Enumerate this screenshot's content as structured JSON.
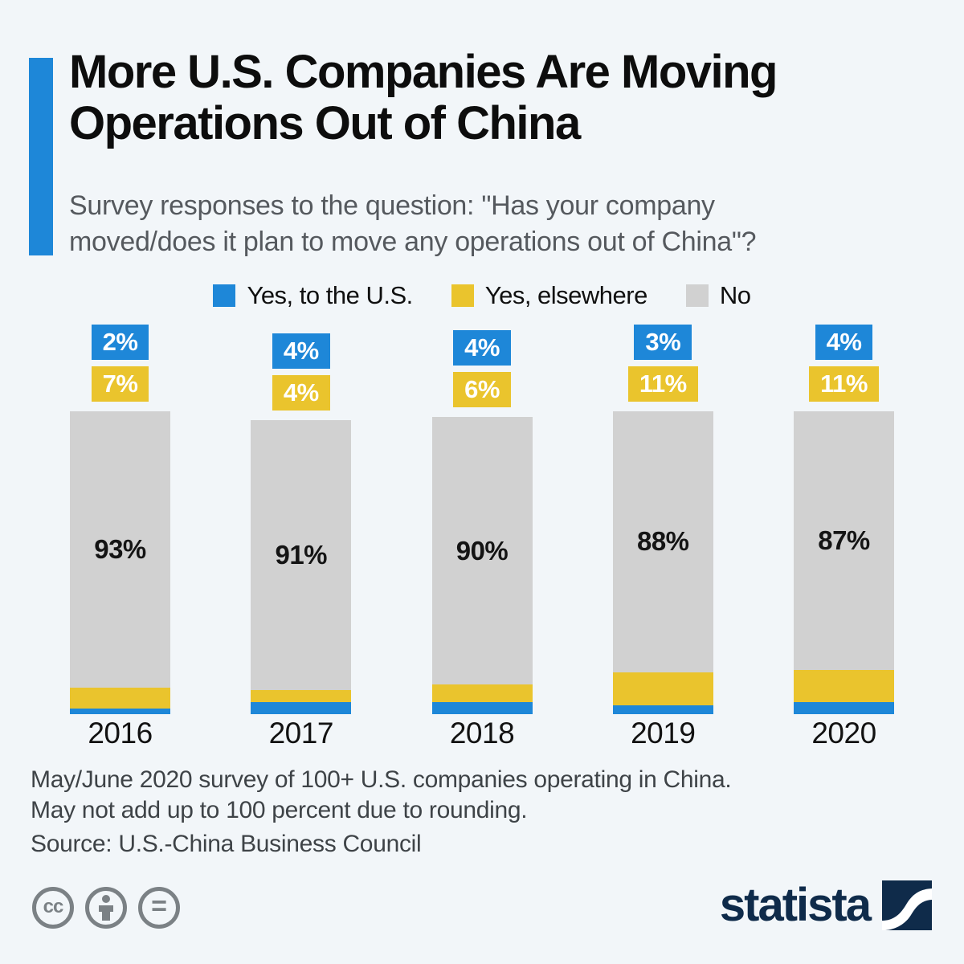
{
  "header": {
    "title_line1": "More U.S. Companies Are Moving",
    "title_line2": "Operations Out of China",
    "subtitle_line1": "Survey responses to the question: \"Has your company",
    "subtitle_line2": "moved/does it plan to move any operations out of China\"?"
  },
  "chart_data": {
    "type": "bar",
    "stacked": true,
    "orientation": "vertical",
    "legend_position": "top",
    "categories": [
      "2016",
      "2017",
      "2018",
      "2019",
      "2020"
    ],
    "series": [
      {
        "name": "Yes, to the U.S.",
        "color": "#1e87d8",
        "values": [
          2,
          4,
          4,
          3,
          4
        ]
      },
      {
        "name": "Yes, elsewhere",
        "color": "#eac42d",
        "values": [
          7,
          4,
          6,
          11,
          11
        ]
      },
      {
        "name": "No",
        "color": "#d1d1d1",
        "values": [
          93,
          91,
          90,
          88,
          87
        ]
      }
    ],
    "value_suffix": "%",
    "axes": {
      "y_axis_visible": false,
      "grid": false
    }
  },
  "footnote": {
    "line1": "May/June 2020 survey of 100+ U.S. companies operating in China.",
    "line2": "May not add up to 100 percent due to rounding.",
    "source": "Source: U.S.-China Business Council"
  },
  "branding": {
    "logo_text": "statista",
    "license_icon_names": [
      "cc-icon",
      "attribution-icon",
      "no-derivatives-icon"
    ]
  },
  "colors": {
    "accent_blue": "#1e87d8",
    "yellow": "#eac42d",
    "gray": "#d1d1d1",
    "background": "#f2f6f9",
    "navy": "#0f2b4a",
    "license_gray": "#7b8185"
  }
}
